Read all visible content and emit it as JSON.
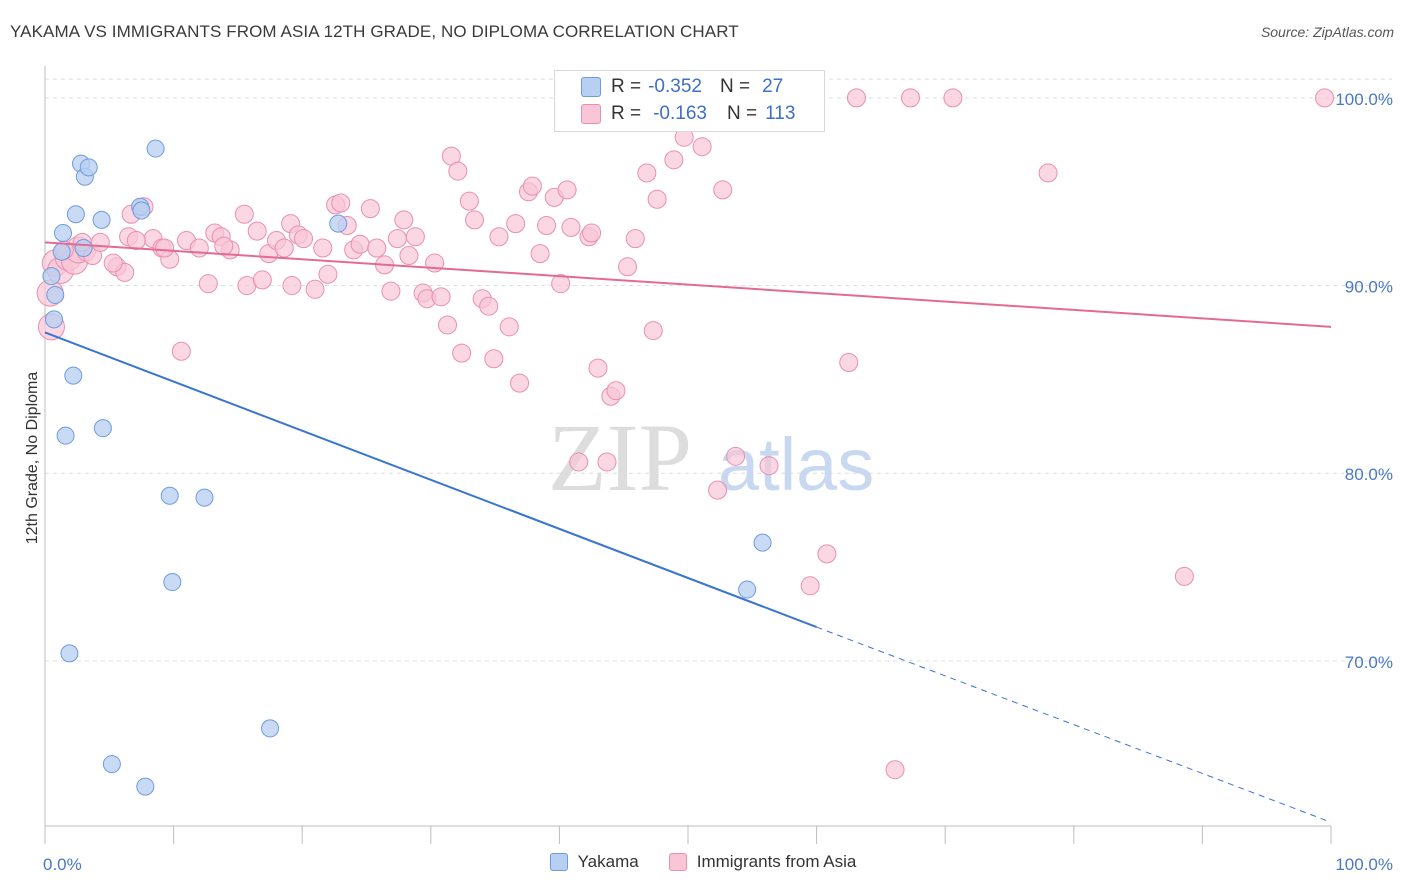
{
  "title": "YAKAMA VS IMMIGRANTS FROM ASIA 12TH GRADE, NO DIPLOMA CORRELATION CHART",
  "source": "Source: ZipAtlas.com",
  "watermark": {
    "zip": "ZIP",
    "atlas": "atlas"
  },
  "legend": {
    "rows": [
      {
        "r_label": "R =",
        "r_value": "-0.352",
        "n_label": "N =",
        "n_value": "27"
      },
      {
        "r_label": "R =",
        "r_value": "-0.163",
        "n_label": "N =",
        "n_value": "113"
      }
    ]
  },
  "bottom_legend": [
    "Yakama",
    "Immigrants from Asia"
  ],
  "colors": {
    "yakama_fill": "#b7cff0",
    "yakama_stroke": "#6e9be0",
    "yakama_line": "#3a74d4",
    "asia_fill": "#f8c6d6",
    "asia_stroke": "#ea8fb0",
    "asia_line": "#e46a96",
    "axis_text": "#4a78c4",
    "grid": "#dedede"
  },
  "chart_data": {
    "type": "scatter",
    "xlabel": "",
    "ylabel": "12th Grade, No Diploma",
    "xlim": [
      0,
      100
    ],
    "ylim": [
      61.2,
      101.7
    ],
    "x_tick_labels": [
      "0.0%",
      "100.0%"
    ],
    "y_ticks": [
      70,
      80,
      90,
      100
    ],
    "y_tick_labels": [
      "70.0%",
      "80.0%",
      "90.0%",
      "100.0%"
    ],
    "grid": "horizontal dashed",
    "series": [
      {
        "name": "Yakama",
        "points": [
          [
            0.5,
            90.5
          ],
          [
            0.7,
            88.2
          ],
          [
            0.8,
            89.5
          ],
          [
            1.3,
            91.8
          ],
          [
            1.4,
            92.8
          ],
          [
            1.6,
            82.0
          ],
          [
            1.9,
            70.4
          ],
          [
            2.2,
            85.2
          ],
          [
            2.4,
            93.8
          ],
          [
            2.8,
            96.5
          ],
          [
            3.1,
            95.8
          ],
          [
            3.4,
            96.3
          ],
          [
            4.4,
            93.5
          ],
          [
            4.5,
            82.4
          ],
          [
            5.2,
            64.5
          ],
          [
            7.4,
            94.2
          ],
          [
            7.8,
            63.3
          ],
          [
            8.6,
            97.3
          ],
          [
            9.7,
            78.8
          ],
          [
            9.9,
            74.2
          ],
          [
            12.4,
            78.7
          ],
          [
            17.5,
            66.4
          ],
          [
            22.8,
            93.3
          ],
          [
            55.8,
            76.3
          ],
          [
            54.6,
            73.8
          ],
          [
            3.0,
            92.0
          ],
          [
            7.5,
            94.0
          ]
        ],
        "trend": {
          "x": [
            0,
            60
          ],
          "y": [
            87.5,
            71.8
          ],
          "dashed_to": [
            100,
            61.4
          ]
        }
      },
      {
        "name": "Immigrants from Asia",
        "points": [
          [
            0.4,
            89.6
          ],
          [
            0.5,
            87.8
          ],
          [
            0.8,
            91.2
          ],
          [
            1.2,
            90.8
          ],
          [
            1.8,
            91.5
          ],
          [
            2.3,
            91.3
          ],
          [
            2.6,
            91.9
          ],
          [
            3.2,
            91.8
          ],
          [
            3.7,
            91.6
          ],
          [
            4.3,
            92.3
          ],
          [
            5.6,
            91.0
          ],
          [
            6.2,
            90.7
          ],
          [
            6.5,
            92.6
          ],
          [
            6.7,
            93.8
          ],
          [
            7.7,
            94.2
          ],
          [
            8.4,
            92.5
          ],
          [
            9.1,
            92.0
          ],
          [
            9.7,
            91.4
          ],
          [
            10.6,
            86.5
          ],
          [
            11.0,
            92.4
          ],
          [
            12.0,
            92.0
          ],
          [
            12.7,
            90.1
          ],
          [
            13.2,
            92.8
          ],
          [
            13.7,
            92.6
          ],
          [
            14.4,
            91.9
          ],
          [
            15.5,
            93.8
          ],
          [
            15.7,
            90.0
          ],
          [
            16.5,
            92.9
          ],
          [
            16.9,
            90.3
          ],
          [
            17.4,
            91.7
          ],
          [
            18.0,
            92.4
          ],
          [
            18.6,
            92.0
          ],
          [
            19.1,
            93.3
          ],
          [
            19.7,
            92.7
          ],
          [
            20.1,
            92.5
          ],
          [
            21.0,
            89.8
          ],
          [
            21.6,
            92.0
          ],
          [
            22.0,
            90.6
          ],
          [
            22.6,
            94.3
          ],
          [
            23.0,
            94.4
          ],
          [
            23.5,
            93.2
          ],
          [
            24.0,
            91.9
          ],
          [
            24.5,
            92.2
          ],
          [
            25.3,
            94.1
          ],
          [
            25.8,
            92.0
          ],
          [
            26.4,
            91.1
          ],
          [
            26.9,
            89.7
          ],
          [
            27.4,
            92.5
          ],
          [
            27.9,
            93.5
          ],
          [
            28.3,
            91.6
          ],
          [
            28.8,
            92.6
          ],
          [
            29.4,
            89.6
          ],
          [
            29.7,
            89.3
          ],
          [
            30.3,
            91.2
          ],
          [
            31.3,
            87.9
          ],
          [
            31.6,
            96.9
          ],
          [
            32.1,
            96.1
          ],
          [
            32.4,
            86.4
          ],
          [
            33.0,
            94.5
          ],
          [
            33.4,
            93.5
          ],
          [
            34.0,
            89.3
          ],
          [
            34.5,
            88.9
          ],
          [
            34.9,
            86.1
          ],
          [
            35.3,
            92.6
          ],
          [
            36.1,
            87.8
          ],
          [
            36.6,
            93.3
          ],
          [
            36.9,
            84.8
          ],
          [
            37.6,
            95.0
          ],
          [
            37.9,
            95.3
          ],
          [
            38.5,
            91.7
          ],
          [
            39.0,
            93.2
          ],
          [
            39.6,
            94.7
          ],
          [
            40.1,
            90.1
          ],
          [
            40.6,
            95.1
          ],
          [
            40.9,
            93.1
          ],
          [
            41.5,
            80.6
          ],
          [
            42.3,
            92.6
          ],
          [
            42.5,
            92.8
          ],
          [
            43.0,
            85.6
          ],
          [
            43.7,
            80.6
          ],
          [
            44.0,
            84.1
          ],
          [
            44.4,
            84.4
          ],
          [
            45.3,
            91.0
          ],
          [
            45.9,
            92.5
          ],
          [
            46.8,
            96.0
          ],
          [
            47.3,
            87.6
          ],
          [
            47.6,
            94.6
          ],
          [
            48.9,
            96.7
          ],
          [
            49.7,
            97.9
          ],
          [
            51.1,
            97.4
          ],
          [
            52.7,
            95.1
          ],
          [
            52.3,
            79.1
          ],
          [
            53.7,
            80.9
          ],
          [
            55.8,
            99.8
          ],
          [
            56.3,
            80.4
          ],
          [
            59.5,
            74.0
          ],
          [
            60.8,
            75.7
          ],
          [
            62.5,
            85.9
          ],
          [
            63.1,
            100.0
          ],
          [
            66.1,
            64.2
          ],
          [
            67.3,
            100.0
          ],
          [
            70.6,
            100.0
          ],
          [
            78.0,
            96.0
          ],
          [
            88.6,
            74.5
          ],
          [
            99.5,
            100.0
          ],
          [
            1.5,
            91.9
          ],
          [
            2.9,
            92.3
          ],
          [
            5.3,
            91.2
          ],
          [
            7.1,
            92.4
          ],
          [
            9.3,
            92.0
          ],
          [
            13.9,
            92.1
          ],
          [
            19.2,
            90.0
          ],
          [
            30.8,
            89.4
          ]
        ],
        "trend": {
          "x": [
            0,
            100
          ],
          "y": [
            92.3,
            87.8
          ]
        }
      }
    ]
  }
}
